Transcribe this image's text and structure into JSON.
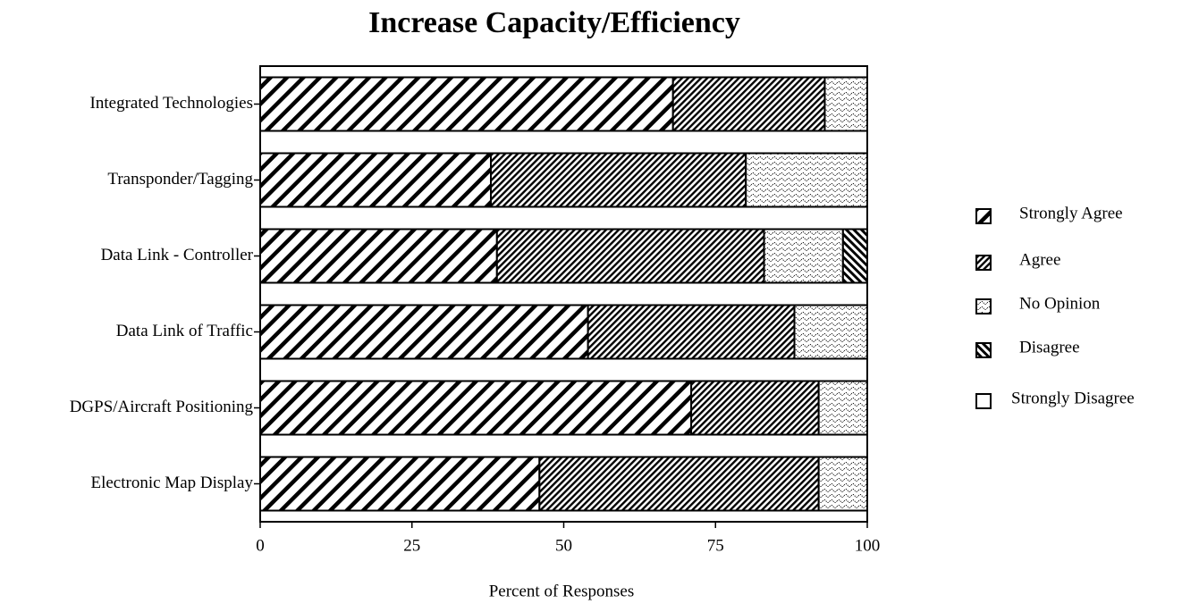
{
  "chart_data": {
    "type": "stacked_barh",
    "title": "Increase Capacity/Efficiency",
    "x_label": "Percent of Responses",
    "categories": [
      "Integrated Technologies",
      "Transponder/Tagging",
      "Data Link - Controller",
      "Data Link of Traffic",
      "DGPS/Aircraft Positioning",
      "Electronic Map Display"
    ],
    "series": [
      {
        "name": "Strongly Agree",
        "color": "#000000",
        "values": [
          68,
          38,
          39,
          54,
          71,
          46
        ]
      },
      {
        "name": "Agree",
        "color": "#000000",
        "values": [
          25,
          42,
          44,
          34,
          21,
          46
        ]
      },
      {
        "name": "No Opinion",
        "color": "#000000",
        "values": [
          7,
          20,
          13,
          12,
          8,
          8
        ]
      },
      {
        "name": "Disagree",
        "color": "#000000",
        "values": [
          0,
          0,
          4,
          0,
          0,
          0
        ]
      },
      {
        "name": "Strongly Disagree",
        "color": "#000000",
        "values": [
          0,
          0,
          0,
          0,
          0,
          0
        ]
      }
    ],
    "xlim": [
      0,
      100
    ],
    "xticks": [
      0,
      25,
      50,
      75,
      100
    ],
    "legend": "right"
  }
}
